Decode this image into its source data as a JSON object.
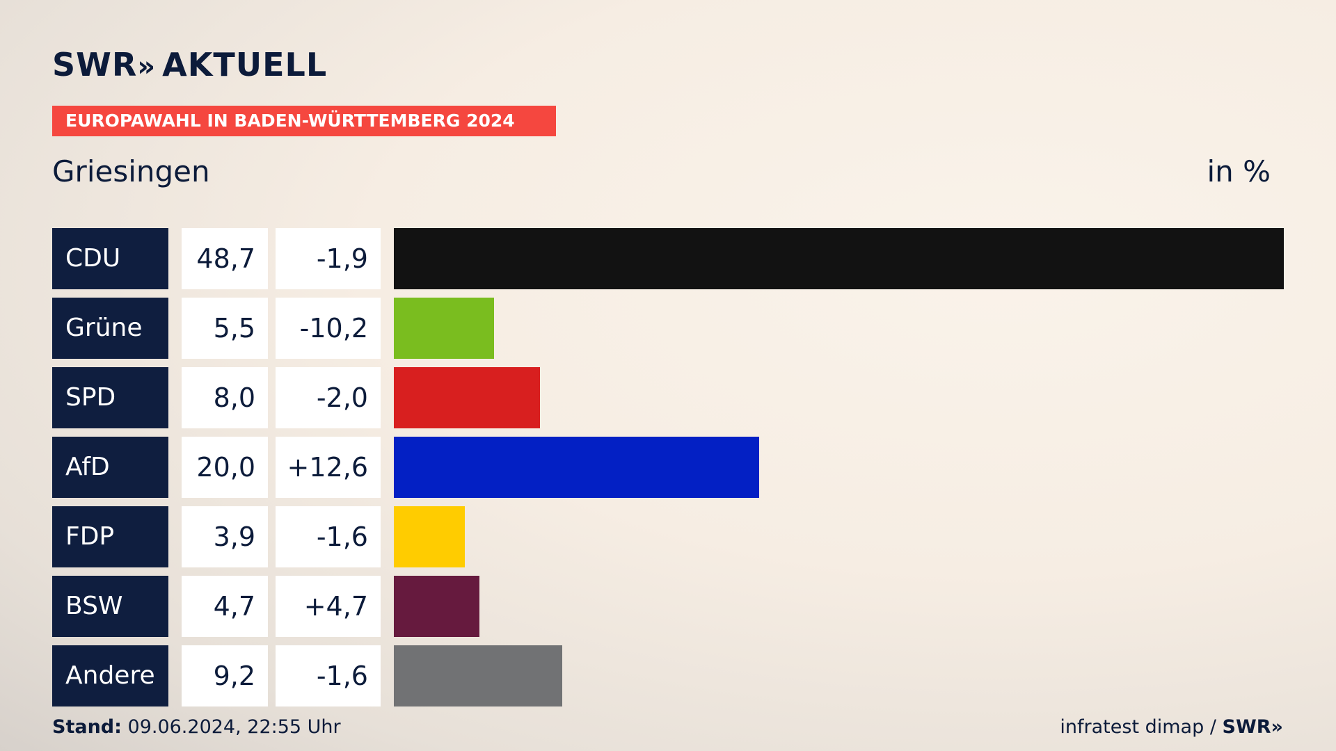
{
  "brand": {
    "name": "SWR",
    "chevrons": "»",
    "product": "AKTUELL"
  },
  "banner": "EUROPAWAHL IN BADEN-WÜRTTEMBERG 2024",
  "place": "Griesingen",
  "unit": "in %",
  "footer": {
    "stand_label": "Stand:",
    "stand_value": "09.06.2024, 22:55 Uhr",
    "source": "infratest dimap /",
    "source_brand": "SWR»"
  },
  "chart_data": {
    "type": "bar",
    "orientation": "horizontal",
    "title": "EUROPAWAHL IN BADEN-WÜRTTEMBERG 2024",
    "subtitle": "Griesingen",
    "unit": "in %",
    "categories": [
      "CDU",
      "Grüne",
      "SPD",
      "AfD",
      "FDP",
      "BSW",
      "Andere"
    ],
    "values": [
      48.7,
      5.5,
      8.0,
      20.0,
      3.9,
      4.7,
      9.2
    ],
    "value_labels": [
      "48,7",
      "5,5",
      "8,0",
      "20,0",
      "3,9",
      "4,7",
      "9,2"
    ],
    "changes": [
      -1.9,
      -10.2,
      -2.0,
      12.6,
      -1.6,
      4.7,
      -1.6
    ],
    "change_labels": [
      "-1,9",
      "-10,2",
      "-2,0",
      "+12,6",
      "-1,6",
      "+4,7",
      "-1,6"
    ],
    "colors": [
      "#121212",
      "#7abd1f",
      "#d81f1f",
      "#0320c4",
      "#ffcc00",
      "#661a3e",
      "#717274"
    ],
    "xlim": [
      0,
      48.7
    ],
    "grid": false
  }
}
